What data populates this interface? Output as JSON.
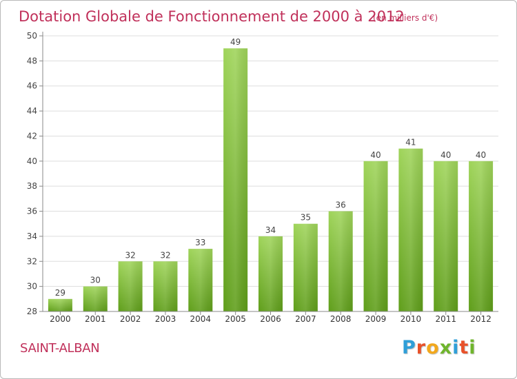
{
  "title": "Dotation Globale de Fonctionnement de 2000 à 2012",
  "unit_note": "(en milliers d'€)",
  "commune": "SAINT-ALBAN",
  "logo": {
    "text": "Proxiti",
    "letters": [
      "P",
      "r",
      "o",
      "x",
      "i",
      "t",
      "i"
    ],
    "letter_colors": [
      "#2f9fd8",
      "#e8512a",
      "#f2a81d",
      "#6fb52c",
      "#2f9fd8",
      "#e8512a",
      "#6fb52c"
    ]
  },
  "colors": {
    "title": "#c0305a",
    "bar_light": "#9fd45a",
    "bar_dark": "#5f9e1a",
    "grid": "#d9d9d9"
  },
  "chart_data": {
    "type": "bar",
    "categories": [
      "2000",
      "2001",
      "2002",
      "2003",
      "2004",
      "2005",
      "2006",
      "2007",
      "2008",
      "2009",
      "2010",
      "2011",
      "2012"
    ],
    "values": [
      29,
      30,
      32,
      32,
      33,
      49,
      34,
      35,
      36,
      40,
      41,
      40,
      40
    ],
    "ylim": [
      28,
      50
    ],
    "yticks": [
      28,
      30,
      32,
      34,
      36,
      38,
      40,
      42,
      44,
      46,
      48,
      50
    ],
    "grid": true
  }
}
